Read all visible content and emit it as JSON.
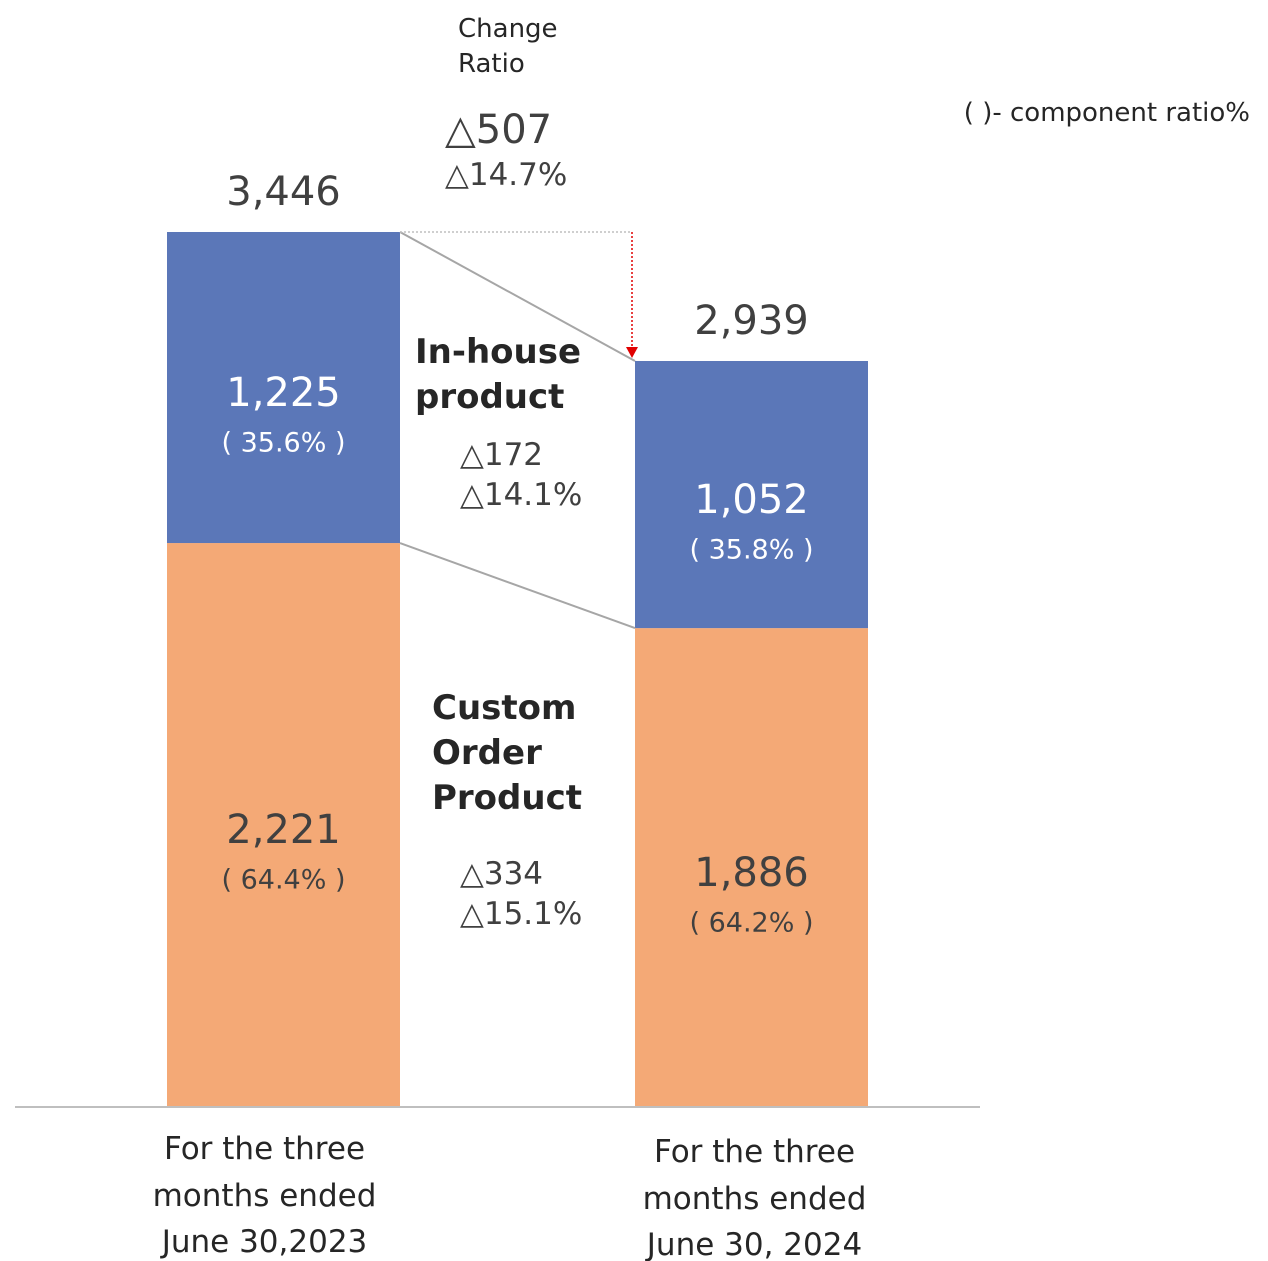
{
  "chart_data": {
    "type": "bar",
    "stacked": true,
    "change_title": "Change Ratio",
    "note": "( )- component ratio%",
    "total_change_labels": [
      "△507",
      "△14.7%"
    ],
    "categories": [
      "For the three months ended June 30,2023",
      "For the three months ended June 30, 2024"
    ],
    "series": [
      {
        "name": "Custom Order Product",
        "color": "#f4a976",
        "text_color": "#404040",
        "values": [
          2221,
          1886
        ],
        "value_labels": [
          "2,221",
          "1,886"
        ],
        "ratio_labels": [
          "( 64.4% )",
          "( 64.2% )"
        ],
        "change_labels": [
          "△334",
          "△15.1%"
        ]
      },
      {
        "name": "In-house product",
        "color": "#5b77b8",
        "text_color": "#ffffff",
        "values": [
          1225,
          1052
        ],
        "value_labels": [
          "1,225",
          "1,052"
        ],
        "ratio_labels": [
          "( 35.6% )",
          "( 35.8% )"
        ],
        "change_labels": [
          "△172",
          "△14.1%"
        ]
      }
    ],
    "totals": [
      {
        "value": 3446,
        "label": "3,446"
      },
      {
        "value": 2939,
        "label": "2,939"
      }
    ]
  }
}
